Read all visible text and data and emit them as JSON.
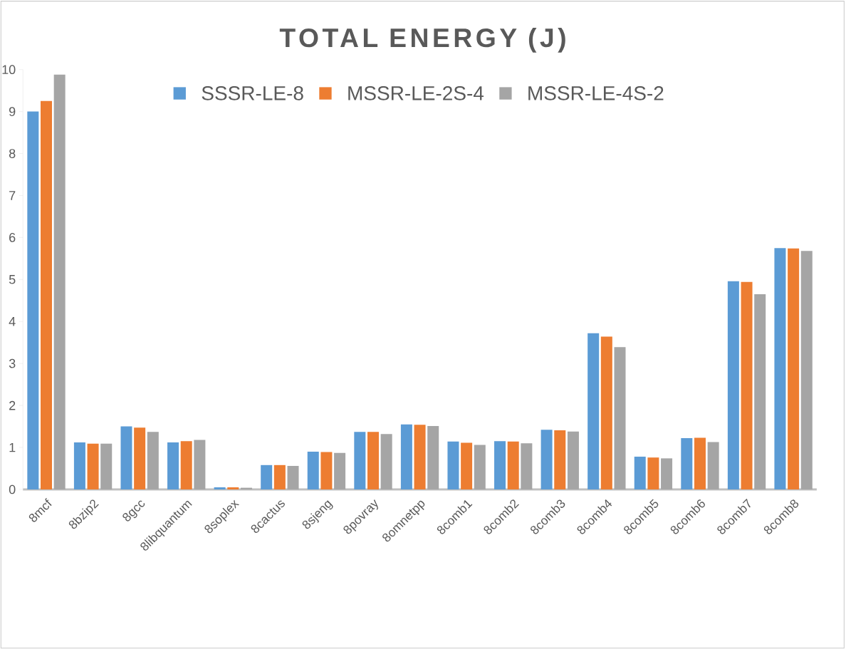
{
  "chart_data": {
    "type": "bar",
    "title": "TOTAL ENERGY (J)",
    "categories": [
      "8mcf",
      "8bzip2",
      "8gcc",
      "8libquantum",
      "8soplex",
      "8cactus",
      "8sjeng",
      "8povray",
      "8omnetpp",
      "8comb1",
      "8comb2",
      "8comb3",
      "8comb4",
      "8comb5",
      "8comb6",
      "8comb7",
      "8comb8"
    ],
    "series": [
      {
        "name": "SSSR-LE-8",
        "color": "#5b9bd5",
        "values": [
          9.0,
          1.12,
          1.5,
          1.12,
          0.05,
          0.58,
          0.9,
          1.37,
          1.55,
          1.14,
          1.15,
          1.42,
          3.72,
          0.78,
          1.22,
          4.96,
          5.75
        ]
      },
      {
        "name": "MSSR-LE-2S-4",
        "color": "#ed7d31",
        "values": [
          9.25,
          1.09,
          1.47,
          1.15,
          0.05,
          0.58,
          0.89,
          1.37,
          1.54,
          1.11,
          1.14,
          1.41,
          3.64,
          0.76,
          1.23,
          4.94,
          5.74
        ]
      },
      {
        "name": "MSSR-LE-4S-2",
        "color": "#a5a5a5",
        "values": [
          9.88,
          1.09,
          1.37,
          1.18,
          0.04,
          0.56,
          0.87,
          1.32,
          1.51,
          1.06,
          1.1,
          1.38,
          3.39,
          0.74,
          1.13,
          4.65,
          5.68
        ]
      }
    ],
    "ylim": [
      0,
      10
    ],
    "yticks": [
      0,
      1,
      2,
      3,
      4,
      5,
      6,
      7,
      8,
      9,
      10
    ],
    "legend": "top"
  }
}
